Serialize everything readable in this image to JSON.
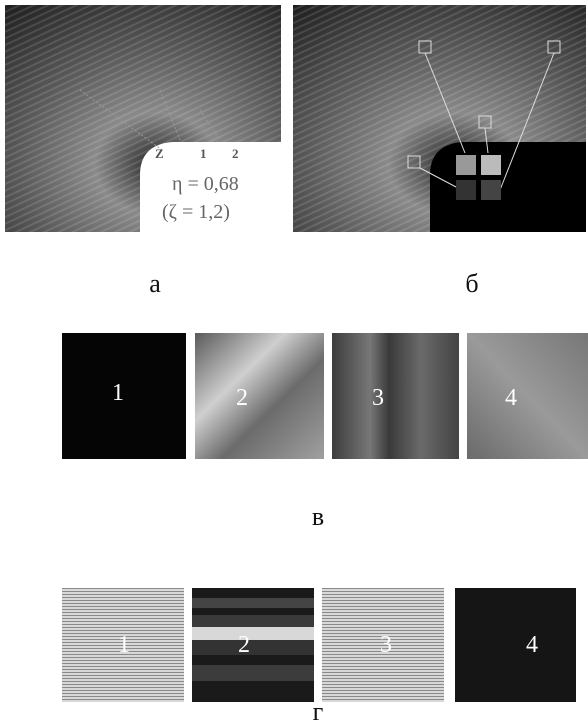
{
  "panel_a": {
    "labels": [
      "Z",
      "1",
      "2"
    ],
    "eta": "η = 0,68",
    "zeta": "(ζ = 1,2)",
    "caption": "а"
  },
  "panel_b": {
    "caption": "б"
  },
  "row_v": {
    "tiles": [
      "1",
      "2",
      "3",
      "4"
    ],
    "caption": "в"
  },
  "row_g": {
    "tiles": [
      "1",
      "2",
      "3",
      "4"
    ],
    "caption": "г"
  }
}
